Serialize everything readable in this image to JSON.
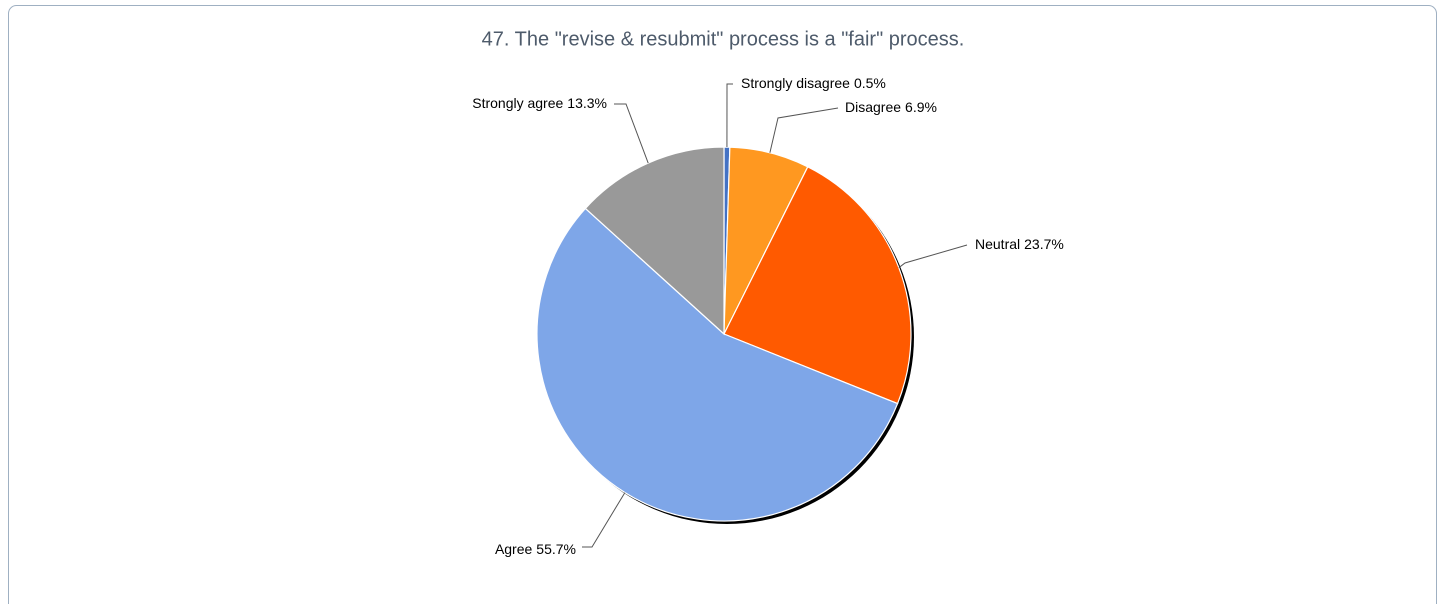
{
  "chart_data": {
    "type": "pie",
    "title": "47. The \"revise & resubmit\" process is a \"fair\" process.",
    "categories": [
      "Strongly disagree",
      "Disagree",
      "Neutral",
      "Agree",
      "Strongly agree"
    ],
    "values": [
      0.5,
      6.9,
      23.7,
      55.7,
      13.3
    ],
    "value_labels": [
      "0.5%",
      "6.9%",
      "23.7%",
      "55.7%",
      "13.3%"
    ],
    "colors": [
      "#4472c4",
      "#ff9820",
      "#ff5a00",
      "#7ea6e8",
      "#999999"
    ]
  }
}
